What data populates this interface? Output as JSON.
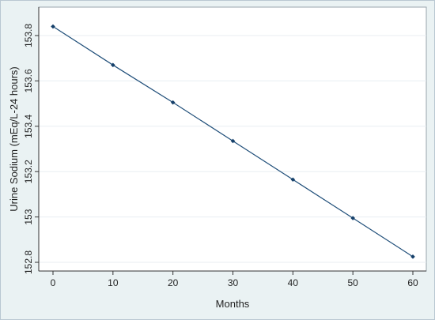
{
  "chart_data": {
    "type": "line",
    "title": "",
    "xlabel": "Months",
    "ylabel": "Urine Sodium (mEq/L-24 hours)",
    "x": [
      0,
      10,
      20,
      30,
      40,
      50,
      60
    ],
    "series": [
      {
        "values": [
          153.84,
          153.67,
          153.505,
          153.335,
          153.165,
          152.995,
          152.825
        ]
      }
    ],
    "xlim": [
      0,
      60
    ],
    "ylim": [
      152.8,
      153.8
    ],
    "xticks": [
      "0",
      "10",
      "20",
      "30",
      "40",
      "50",
      "60"
    ],
    "yticks": [
      "152.8",
      "153",
      "153.2",
      "153.4",
      "153.6",
      "153.8"
    ],
    "grid": true,
    "legend": "none",
    "colors": {
      "line": "#1f4e79",
      "marker": "#16406a",
      "grid": "#e8eef2",
      "outer_background": "#eaf2f3",
      "plot_background": "#ffffff"
    }
  }
}
